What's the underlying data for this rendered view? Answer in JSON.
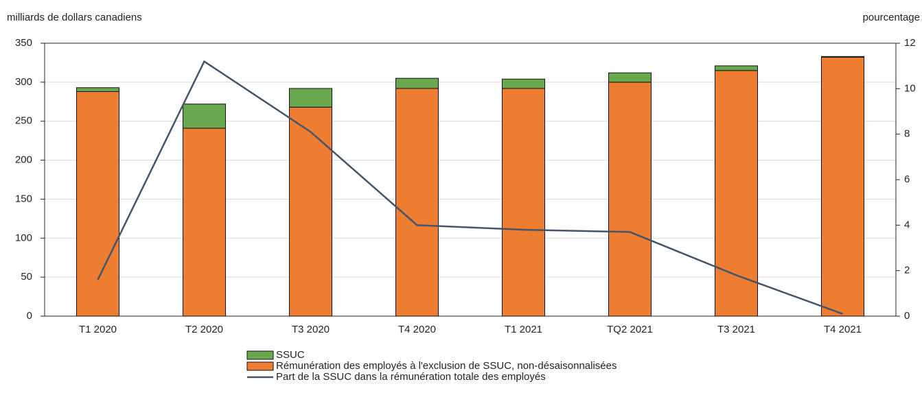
{
  "chart_data": {
    "type": "bar",
    "y_label": "milliards de dollars canadiens",
    "y2_label": "pourcentage",
    "categories": [
      "T1 2020",
      "T2 2020",
      "T3 2020",
      "T4 2020",
      "T1 2021",
      "TQ2 2021",
      "T3 2021",
      "T4 2021"
    ],
    "series": [
      {
        "name": "SSUC",
        "type": "bar",
        "color": "#6aa84f",
        "values": [
          5,
          31,
          24,
          13,
          12,
          12,
          6,
          1
        ]
      },
      {
        "name": "Rémunération des employés à l'exclusion de SSUC, non-désaisonnalisées",
        "type": "bar",
        "color": "#ed7d31",
        "values": [
          288,
          241,
          268,
          292,
          292,
          300,
          315,
          332
        ]
      },
      {
        "name": "Part de la SSUC dans la rémunération totale des employés",
        "type": "line",
        "axis": "y2",
        "color": "#44546a",
        "values": [
          1.6,
          11.2,
          8.1,
          4.0,
          3.8,
          3.7,
          1.8,
          0.1
        ]
      }
    ],
    "ylim": [
      0,
      350
    ],
    "yticks": [
      0,
      50,
      100,
      150,
      200,
      250,
      300,
      350
    ],
    "y2lim": [
      0,
      12
    ],
    "y2ticks": [
      0,
      2,
      4,
      6,
      8,
      10,
      12
    ],
    "stacked": true,
    "grid": true
  }
}
